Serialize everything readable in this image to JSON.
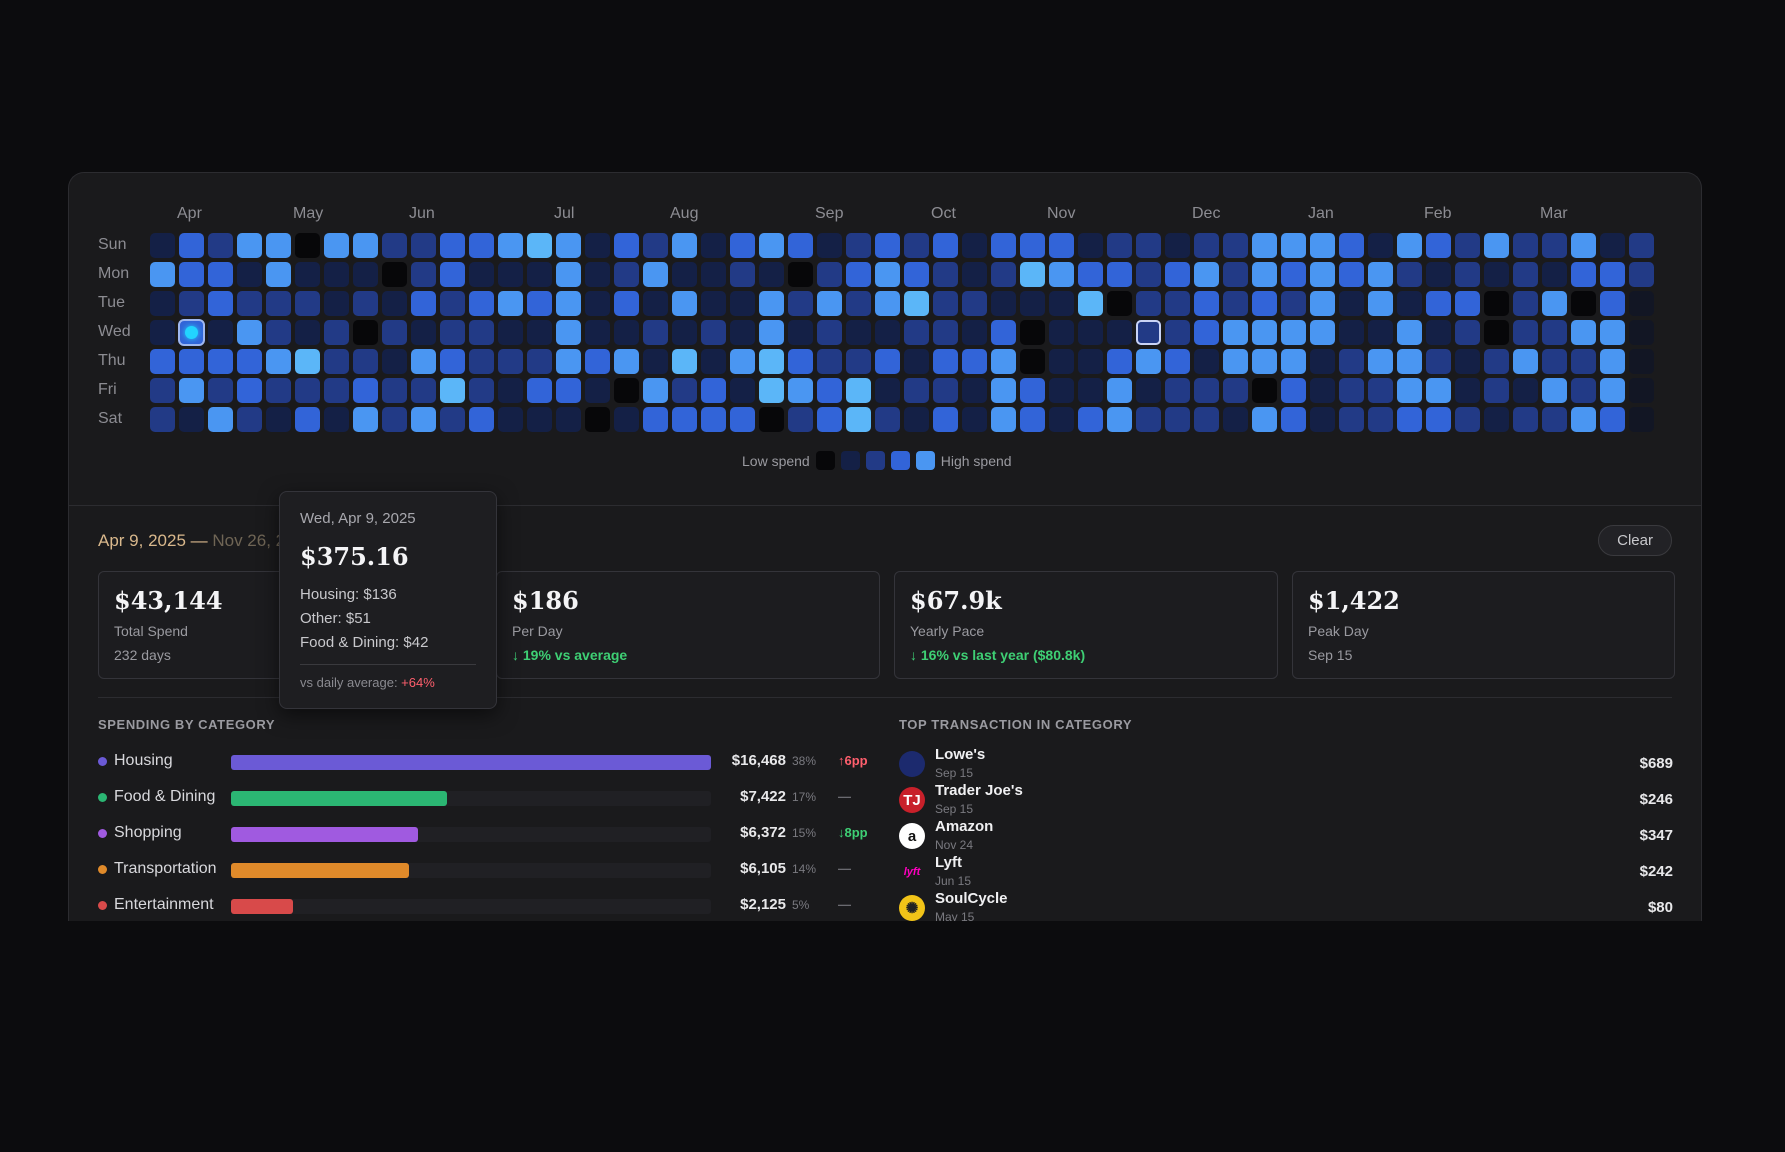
{
  "heatmap": {
    "months": [
      "Apr",
      "May",
      "Jun",
      "Jul",
      "Aug",
      "Sep",
      "Oct",
      "Nov",
      "Dec",
      "Jan",
      "Feb",
      "Mar"
    ],
    "days": [
      "Sun",
      "Mon",
      "Tue",
      "Wed",
      "Thu",
      "Fri",
      "Sat"
    ],
    "legend": {
      "low": "Low spend",
      "high": "High spend"
    },
    "palette": [
      "#070709",
      "#142046",
      "#223a86",
      "#3264d8",
      "#4a96f2",
      "#5bb6f8",
      "#121624"
    ],
    "active_cell": "Wed, Apr 9, 2025",
    "accent": "#22d4ff"
  },
  "tooltip": {
    "date": "Wed, Apr 9, 2025",
    "amount": "$375.16",
    "lines": [
      "Housing: $136",
      "Other: $51",
      "Food & Dining: $42"
    ],
    "vs_label": "vs daily average: ",
    "vs_value": "+64%"
  },
  "range": {
    "start": "Apr 9, 2025 — ",
    "end": "Nov 26, 2025"
  },
  "clear_label": "Clear",
  "stats": [
    {
      "value": "$43,144",
      "label": "Total Spend",
      "sub": "232 days",
      "sub_good": false
    },
    {
      "value": "$186",
      "label": "Per Day",
      "sub": "↓ 19% vs average",
      "sub_good": true
    },
    {
      "value": "$67.9k",
      "label": "Yearly Pace",
      "sub": "↓ 16% vs last year ($80.8k)",
      "sub_good": true
    },
    {
      "value": "$1,422",
      "label": "Peak Day",
      "sub": "Sep 15",
      "sub_good": false
    }
  ],
  "categories_title": "SPENDING BY CATEGORY",
  "categories": [
    {
      "name": "Housing",
      "amount": "$16,468",
      "pct": "38%",
      "change": "↑6pp",
      "change_color": "#ff5f6d",
      "color": "#6b5ad6",
      "fill": 1.0
    },
    {
      "name": "Food & Dining",
      "amount": "$7,422",
      "pct": "17%",
      "change": "—",
      "change_color": "#6a6a70",
      "color": "#2bb673",
      "fill": 0.45
    },
    {
      "name": "Shopping",
      "amount": "$6,372",
      "pct": "15%",
      "change": "↓8pp",
      "change_color": "#3ecf74",
      "color": "#a05ae0",
      "fill": 0.39
    },
    {
      "name": "Transportation",
      "amount": "$6,105",
      "pct": "14%",
      "change": "—",
      "change_color": "#6a6a70",
      "color": "#e08a2a",
      "fill": 0.37
    },
    {
      "name": "Entertainment",
      "amount": "$2,125",
      "pct": "5%",
      "change": "—",
      "change_color": "#6a6a70",
      "color": "#d84a4a",
      "fill": 0.13
    }
  ],
  "transactions_title": "TOP TRANSACTION IN CATEGORY",
  "transactions": [
    {
      "name": "Lowe's",
      "date": "Sep 15",
      "amount": "$689",
      "logo": "lowes-logo-icon",
      "logo_bg": "#1c2a6e",
      "logo_fg": "#ffffff",
      "logo_text": ""
    },
    {
      "name": "Trader Joe's",
      "date": "Sep 15",
      "amount": "$246",
      "logo": "trader-joes-logo-icon",
      "logo_bg": "#c8202a",
      "logo_fg": "#ffffff",
      "logo_text": "TJ"
    },
    {
      "name": "Amazon",
      "date": "Nov 24",
      "amount": "$347",
      "logo": "amazon-logo-icon",
      "logo_bg": "#ffffff",
      "logo_fg": "#111111",
      "logo_text": "a"
    },
    {
      "name": "Lyft",
      "date": "Jun 15",
      "amount": "$242",
      "logo": "lyft-logo-icon",
      "logo_bg": "transparent",
      "logo_fg": "#ff00bf",
      "logo_text": "lyft"
    },
    {
      "name": "SoulCycle",
      "date": "May 15",
      "amount": "$80",
      "logo": "soulcycle-logo-icon",
      "logo_bg": "#f2c418",
      "logo_fg": "#222222",
      "logo_text": "✺"
    }
  ]
}
